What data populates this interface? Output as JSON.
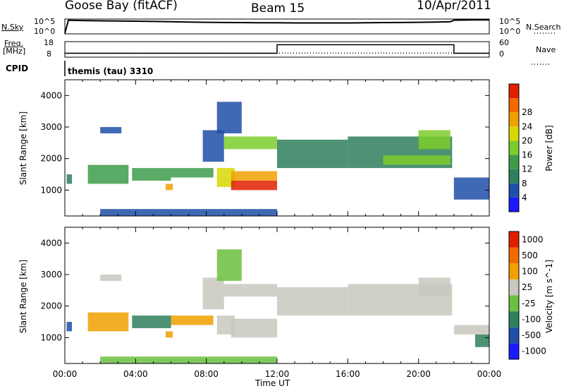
{
  "header": {
    "station": "Goose Bay (fitACF)",
    "beam": "Beam 15",
    "date": "10/Apr/2011"
  },
  "noise_panel": {
    "left_label": "N.Sky",
    "right_label": "N.Search",
    "left_ticks": [
      "10^5",
      "10^0"
    ],
    "right_ticks": [
      "10^5",
      "10^0"
    ]
  },
  "freq_panel": {
    "left_label_line1": "Freq.",
    "left_label_line2": "[MHz]",
    "right_label": "Nave",
    "left_ticks": [
      "18",
      "8"
    ],
    "right_ticks": [
      "60",
      "0"
    ]
  },
  "cpid": {
    "label": "CPID",
    "value": "themis (tau) 3310"
  },
  "colors": {
    "power_scale": [
      "#1a1aff",
      "#1f4fa8",
      "#2e7f5c",
      "#3c9c4a",
      "#7ccc2c",
      "#d8d800",
      "#f0a000",
      "#f06a00",
      "#e02000"
    ],
    "velocity_scale": [
      "#1a1aff",
      "#1f4fa8",
      "#2e7f5c",
      "#6cc040",
      "#c8c8c0",
      "#f0a000",
      "#f06a00",
      "#e02000"
    ]
  },
  "chart_data": [
    {
      "type": "line",
      "panel": "noise",
      "ylabel": "N.Sky",
      "y2label": "N.Search",
      "x_hours": [
        0,
        0.2,
        1,
        2,
        3,
        4,
        5,
        6,
        7,
        8,
        9,
        10,
        11,
        12,
        13,
        14,
        15,
        16,
        17,
        18,
        19,
        20,
        21,
        21.8,
        22,
        23,
        24
      ],
      "series": [
        {
          "name": "N.Sky",
          "style": "solid",
          "values": [
            0.2,
            4.6,
            4.5,
            4.4,
            4.35,
            4.3,
            4.2,
            4.1,
            4.0,
            3.9,
            3.85,
            3.8,
            3.75,
            3.75,
            3.7,
            3.7,
            3.7,
            3.7,
            3.75,
            3.8,
            3.85,
            3.9,
            4.0,
            4.1,
            4.6,
            4.7,
            4.7
          ]
        },
        {
          "name": "N.Search",
          "style": "dotted",
          "values": []
        }
      ]
    },
    {
      "type": "line",
      "panel": "frequency",
      "ylabel": "Freq. [MHz]",
      "y2label": "Nave",
      "ylim": [
        8,
        18
      ],
      "y2lim": [
        0,
        60
      ],
      "series": [
        {
          "name": "Freq.",
          "style": "solid",
          "x_hours": [
            0,
            12,
            12,
            22,
            22,
            24
          ],
          "values": [
            10.5,
            10.5,
            16,
            16,
            10.5,
            10.5
          ]
        },
        {
          "name": "Nave",
          "style": "dotted",
          "x_hours": [
            0,
            24
          ],
          "values": [
            16,
            16
          ]
        }
      ]
    },
    {
      "type": "heatmap",
      "panel": "power",
      "ylabel": "Slant Range [km]",
      "colorbar_label": "Power [dB]",
      "colorbar_ticks": [
        "4",
        "8",
        "12",
        "16",
        "20",
        "24",
        "28"
      ],
      "yticks": [
        "1000",
        "2000",
        "3000",
        "4000"
      ],
      "ylim": [
        180,
        4500
      ],
      "xlim_hours": [
        0,
        24
      ],
      "regions": [
        {
          "x0": 0.1,
          "x1": 0.4,
          "y0": 1200,
          "y1": 1500,
          "level": 2
        },
        {
          "x0": 1.3,
          "x1": 3.6,
          "y0": 1200,
          "y1": 1800,
          "level": 3
        },
        {
          "x0": 2.0,
          "x1": 3.2,
          "y0": 2800,
          "y1": 3000,
          "level": 1
        },
        {
          "x0": 3.8,
          "x1": 6.0,
          "y0": 1300,
          "y1": 1700,
          "level": 3
        },
        {
          "x0": 5.7,
          "x1": 6.1,
          "y0": 1000,
          "y1": 1200,
          "level": 6
        },
        {
          "x0": 6.0,
          "x1": 8.4,
          "y0": 1400,
          "y1": 1700,
          "level": 3
        },
        {
          "x0": 7.8,
          "x1": 9.0,
          "y0": 1900,
          "y1": 2900,
          "level": 1
        },
        {
          "x0": 8.6,
          "x1": 10.0,
          "y0": 2800,
          "y1": 3800,
          "level": 1
        },
        {
          "x0": 8.6,
          "x1": 9.6,
          "y0": 1100,
          "y1": 1700,
          "level": 5
        },
        {
          "x0": 9.4,
          "x1": 12.0,
          "y0": 1000,
          "y1": 1300,
          "level": 8
        },
        {
          "x0": 9.4,
          "x1": 12.0,
          "y0": 1300,
          "y1": 1600,
          "level": 6
        },
        {
          "x0": 9.0,
          "x1": 12.0,
          "y0": 2300,
          "y1": 2700,
          "level": 4
        },
        {
          "x0": 12.0,
          "x1": 16.0,
          "y0": 1700,
          "y1": 2600,
          "level": 2
        },
        {
          "x0": 16.0,
          "x1": 21.9,
          "y0": 1700,
          "y1": 2700,
          "level": 2
        },
        {
          "x0": 18.0,
          "x1": 21.8,
          "y0": 1800,
          "y1": 2100,
          "level": 4
        },
        {
          "x0": 20.0,
          "x1": 21.8,
          "y0": 2300,
          "y1": 2900,
          "level": 4
        },
        {
          "x0": 22.0,
          "x1": 24.0,
          "y0": 700,
          "y1": 1400,
          "level": 1
        },
        {
          "x0": 2.0,
          "x1": 12.0,
          "y0": 180,
          "y1": 400,
          "level": 1
        }
      ]
    },
    {
      "type": "heatmap",
      "panel": "velocity",
      "ylabel": "Slant Range [km]",
      "colorbar_label": "Velocity [m s^-1]",
      "colorbar_ticks": [
        "1000",
        "500",
        "100",
        "25",
        "-25",
        "-100",
        "-500",
        "-1000"
      ],
      "yticks": [
        "1000",
        "2000",
        "3000",
        "4000"
      ],
      "ylim": [
        180,
        4500
      ],
      "xlim_hours": [
        0,
        24
      ],
      "regions": [
        {
          "x0": 0.1,
          "x1": 0.4,
          "y0": 1200,
          "y1": 1500,
          "level": 1
        },
        {
          "x0": 1.3,
          "x1": 3.6,
          "y0": 1200,
          "y1": 1800,
          "level": 5
        },
        {
          "x0": 2.0,
          "x1": 3.2,
          "y0": 2800,
          "y1": 3000,
          "level": 4
        },
        {
          "x0": 3.8,
          "x1": 6.0,
          "y0": 1300,
          "y1": 1700,
          "level": 2
        },
        {
          "x0": 5.7,
          "x1": 6.1,
          "y0": 1000,
          "y1": 1200,
          "level": 5
        },
        {
          "x0": 6.0,
          "x1": 8.4,
          "y0": 1400,
          "y1": 1700,
          "level": 5
        },
        {
          "x0": 7.8,
          "x1": 9.0,
          "y0": 1900,
          "y1": 2900,
          "level": 4
        },
        {
          "x0": 8.6,
          "x1": 10.0,
          "y0": 2800,
          "y1": 3800,
          "level": 3
        },
        {
          "x0": 8.6,
          "x1": 9.6,
          "y0": 1100,
          "y1": 1700,
          "level": 4
        },
        {
          "x0": 9.4,
          "x1": 12.0,
          "y0": 1000,
          "y1": 1600,
          "level": 4
        },
        {
          "x0": 9.0,
          "x1": 12.0,
          "y0": 2300,
          "y1": 2700,
          "level": 4
        },
        {
          "x0": 12.0,
          "x1": 16.0,
          "y0": 1700,
          "y1": 2600,
          "level": 4
        },
        {
          "x0": 16.0,
          "x1": 21.9,
          "y0": 1700,
          "y1": 2700,
          "level": 4
        },
        {
          "x0": 20.0,
          "x1": 21.8,
          "y0": 2300,
          "y1": 2900,
          "level": 4
        },
        {
          "x0": 22.0,
          "x1": 24.0,
          "y0": 1100,
          "y1": 1400,
          "level": 4
        },
        {
          "x0": 23.2,
          "x1": 24.0,
          "y0": 700,
          "y1": 1100,
          "level": 2
        },
        {
          "x0": 2.0,
          "x1": 12.0,
          "y0": 180,
          "y1": 400,
          "level": 3
        }
      ]
    }
  ],
  "x_axis": {
    "label": "Time UT",
    "ticks": [
      "00:00",
      "04:00",
      "08:00",
      "12:00",
      "16:00",
      "20:00",
      "00:00"
    ]
  }
}
